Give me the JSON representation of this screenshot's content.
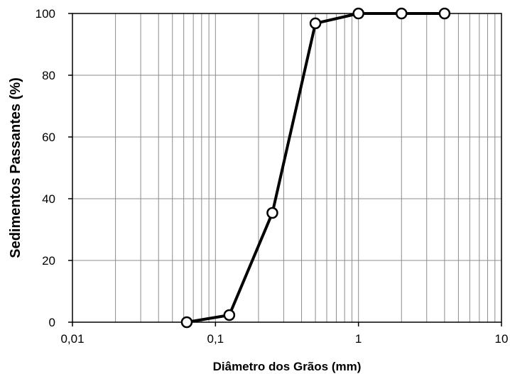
{
  "chart_data": {
    "type": "line",
    "title": "",
    "xlabel": "Diâmetro dos Grãos (mm)",
    "ylabel": "Sedimentos Passantes (%)",
    "x_scale": "log",
    "xlim": [
      0.01,
      10
    ],
    "ylim": [
      0,
      100
    ],
    "x_ticks": [
      {
        "value": 0.01,
        "label": "0,01"
      },
      {
        "value": 0.1,
        "label": "0,1"
      },
      {
        "value": 1,
        "label": "1"
      },
      {
        "value": 10,
        "label": "10"
      }
    ],
    "y_ticks": [
      {
        "value": 0,
        "label": "0"
      },
      {
        "value": 20,
        "label": "20"
      },
      {
        "value": 40,
        "label": "40"
      },
      {
        "value": 60,
        "label": "60"
      },
      {
        "value": 80,
        "label": "80"
      },
      {
        "value": 100,
        "label": "100"
      }
    ],
    "grid": true,
    "grid_minor_x": true,
    "legend": "none",
    "series": [
      {
        "x": [
          0.063,
          0.125,
          0.25,
          0.5,
          1,
          2,
          4
        ],
        "y": [
          0,
          2.3,
          35.4,
          96.8,
          100,
          100,
          100
        ],
        "color": "#000000",
        "marker": "open-circle"
      }
    ]
  }
}
